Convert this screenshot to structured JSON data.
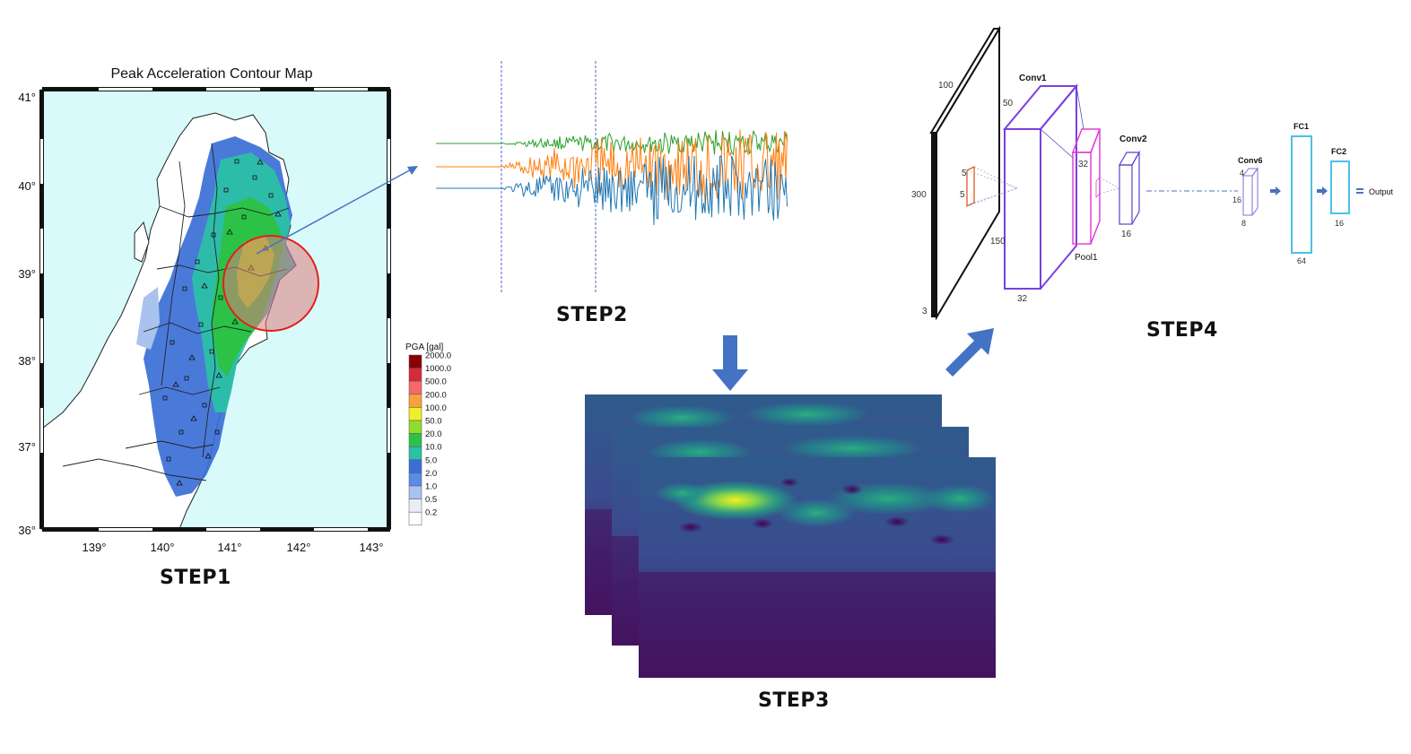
{
  "step1": {
    "map_title": "Peak Acceleration Contour Map",
    "lat_ticks": [
      "41°",
      "40°",
      "39°",
      "38°",
      "37°",
      "36°"
    ],
    "lon_ticks": [
      "139°",
      "140°",
      "141°",
      "142°",
      "143°"
    ],
    "legend_title": "PGA [gal]",
    "legend": [
      {
        "label": "2000.0",
        "color": "#8b0000"
      },
      {
        "label": "1000.0",
        "color": "#d62a3c"
      },
      {
        "label": "500.0",
        "color": "#f46a6a"
      },
      {
        "label": "200.0",
        "color": "#f7a23a"
      },
      {
        "label": "100.0",
        "color": "#f1ef2a"
      },
      {
        "label": "50.0",
        "color": "#8fdc2c"
      },
      {
        "label": "20.0",
        "color": "#2cc247"
      },
      {
        "label": "10.0",
        "color": "#2bc0a8"
      },
      {
        "label": "5.0",
        "color": "#3b6fd6"
      },
      {
        "label": "2.0",
        "color": "#5b8be8"
      },
      {
        "label": "1.0",
        "color": "#a9c2ee"
      },
      {
        "label": "0.5",
        "color": "#e8eef8"
      },
      {
        "label": "0.2",
        "color": "#ffffff"
      }
    ],
    "label": "STEP1"
  },
  "step2": {
    "label": "STEP2",
    "trace_colors": [
      "#2ca02c",
      "#ff7f0e",
      "#1f77b4"
    ]
  },
  "step3": {
    "label": "STEP3"
  },
  "step4": {
    "label": "STEP4",
    "input": {
      "width": "100",
      "height": "300",
      "depth": "3",
      "kernel_a": "5",
      "kernel_b": "5"
    },
    "conv1": {
      "name": "Conv1",
      "height": "50",
      "width": "150",
      "depth": "32"
    },
    "pool1": {
      "name": "Pool1",
      "size": "32"
    },
    "conv2": {
      "name": "Conv2",
      "size": "16"
    },
    "conv6": {
      "name": "Conv6",
      "a": "4",
      "b": "16",
      "c": "8"
    },
    "fc1": {
      "name": "FC1",
      "size": "64"
    },
    "fc2": {
      "name": "FC2",
      "size": "16"
    },
    "output": "Output"
  },
  "colors": {
    "arrow": "#4472c4",
    "accent": "#4a73c0"
  }
}
